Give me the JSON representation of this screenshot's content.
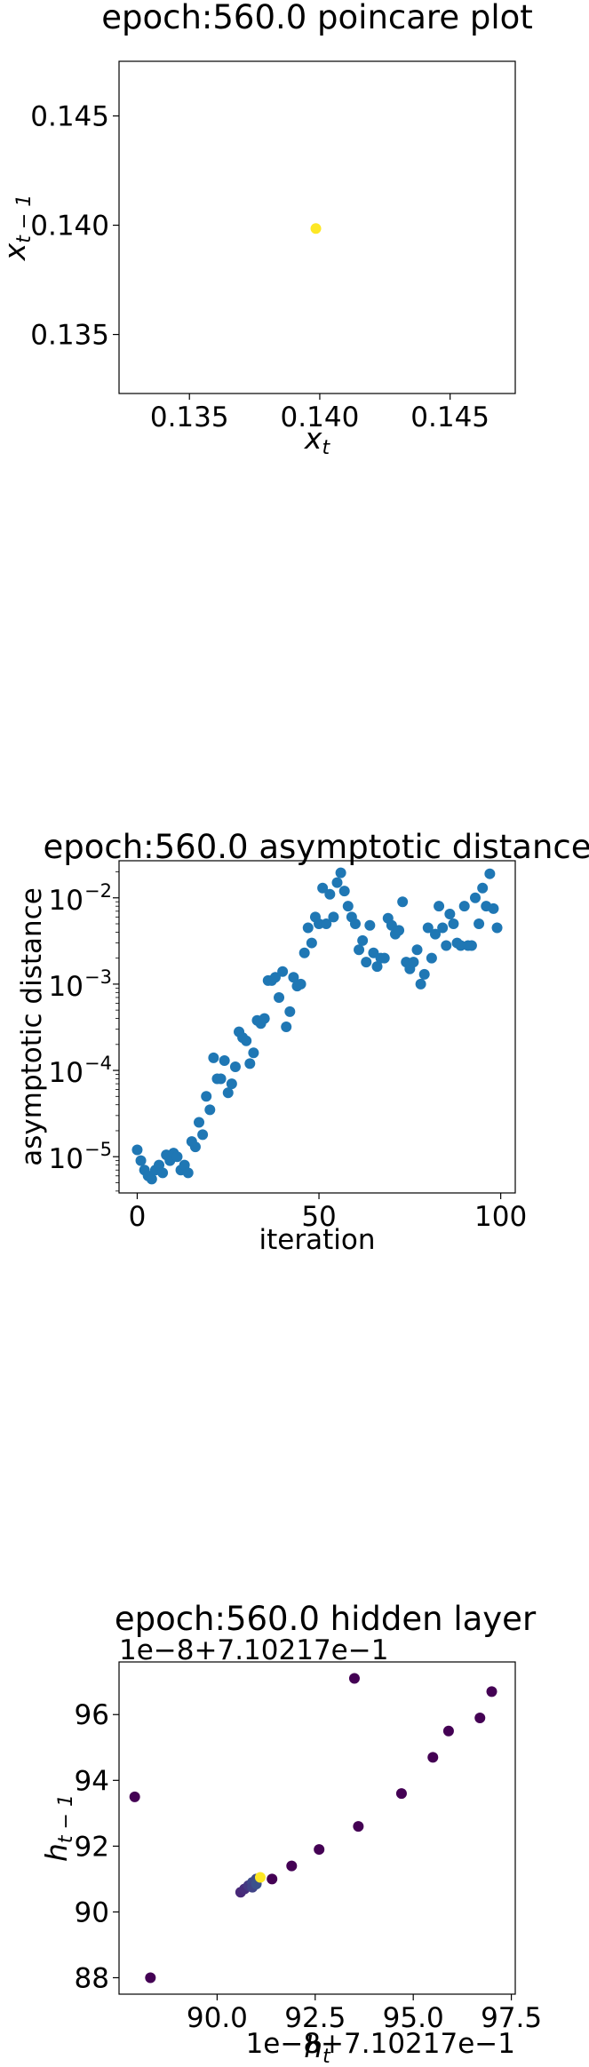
{
  "chart_data": [
    {
      "type": "scatter",
      "title": "epoch:560.0 poincare plot",
      "xlabel": "x_t",
      "ylabel": "x_{t-1}",
      "xlim": [
        0.1323,
        0.1475
      ],
      "ylim": [
        0.1323,
        0.1475
      ],
      "xticks": [
        "0.135",
        "0.140",
        "0.145"
      ],
      "yticks": [
        "0.135",
        "0.140",
        "0.145"
      ],
      "grid": false,
      "points": [
        {
          "x": 0.13985,
          "y": 0.13985,
          "color": "#fde725"
        }
      ]
    },
    {
      "type": "scatter",
      "title": "epoch:560.0 asymptotic distance",
      "xlabel": "iteration",
      "ylabel": "asymptotic distance",
      "xlim": [
        -5,
        104
      ],
      "ylim_log10": [
        -5.42,
        -1.57
      ],
      "yscale": "log",
      "xticks": [
        "0",
        "50",
        "100"
      ],
      "yticks": [
        "10",
        "10",
        "10",
        "10"
      ],
      "ytick_exponents": [
        "−5",
        "−4",
        "−3",
        "−2"
      ],
      "grid": false,
      "color": "#1f77b4",
      "x": [
        0,
        1,
        2,
        3,
        4,
        5,
        6,
        7,
        8,
        9,
        10,
        11,
        12,
        13,
        14,
        15,
        16,
        17,
        18,
        19,
        20,
        21,
        22,
        23,
        24,
        25,
        26,
        27,
        28,
        29,
        30,
        31,
        32,
        33,
        34,
        35,
        36,
        37,
        38,
        39,
        40,
        41,
        42,
        43,
        44,
        45,
        46,
        47,
        48,
        49,
        50,
        51,
        52,
        53,
        54,
        55,
        56,
        57,
        58,
        59,
        60,
        61,
        62,
        63,
        64,
        65,
        66,
        67,
        68,
        69,
        70,
        71,
        72,
        73,
        74,
        75,
        76,
        77,
        78,
        79,
        80,
        81,
        82,
        83,
        84,
        85,
        86,
        87,
        88,
        89,
        90,
        91,
        92,
        93,
        94,
        95,
        96,
        97,
        98,
        99
      ],
      "y": [
        1.2e-05,
        9e-06,
        7e-06,
        6e-06,
        5.5e-06,
        7e-06,
        8e-06,
        6.5e-06,
        1.05e-05,
        9e-06,
        1.1e-05,
        1e-05,
        7e-06,
        8e-06,
        6.5e-06,
        1.5e-05,
        1.3e-05,
        2.5e-05,
        1.8e-05,
        5e-05,
        3.5e-05,
        0.00014,
        8e-05,
        8e-05,
        0.00013,
        5.5e-05,
        7e-05,
        0.00011,
        0.00028,
        0.00024,
        0.00022,
        0.00012,
        0.00016,
        0.00038,
        0.00035,
        0.0004,
        0.0011,
        0.0011,
        0.0012,
        0.0007,
        0.0014,
        0.00032,
        0.00048,
        0.0012,
        0.00095,
        0.001,
        0.0023,
        0.0045,
        0.003,
        0.006,
        0.005,
        0.013,
        0.005,
        0.011,
        0.006,
        0.015,
        0.0195,
        0.012,
        0.008,
        0.006,
        0.005,
        0.0025,
        0.0032,
        0.0018,
        0.0048,
        0.0023,
        0.0016,
        0.002,
        0.002,
        0.0058,
        0.0048,
        0.0038,
        0.0042,
        0.009,
        0.0018,
        0.0015,
        0.0018,
        0.0025,
        0.001,
        0.0013,
        0.0045,
        0.002,
        0.0038,
        0.008,
        0.0045,
        0.0028,
        0.0065,
        0.005,
        0.003,
        0.0028,
        0.008,
        0.0028,
        0.0028,
        0.01,
        0.005,
        0.013,
        0.008,
        0.019,
        0.0075,
        0.0045
      ]
    },
    {
      "type": "scatter",
      "title": "epoch:560.0 hidden layer",
      "xlabel": "h_t",
      "ylabel": "h_{t-1}",
      "offset_x": "1e−8+7.10217e−1",
      "offset_y": "1e−8+7.10217e−1",
      "xlim": [
        87.5,
        97.6
      ],
      "ylim": [
        87.5,
        97.6
      ],
      "xticks": [
        "90.0",
        "92.5",
        "95.0",
        "97.5"
      ],
      "yticks": [
        "88",
        "90",
        "92",
        "94",
        "96"
      ],
      "grid": false,
      "colormap": "viridis",
      "points": [
        {
          "x": 87.9,
          "y": 93.5,
          "c": "#440154"
        },
        {
          "x": 88.3,
          "y": 88.0,
          "c": "#440154"
        },
        {
          "x": 93.5,
          "y": 97.1,
          "c": "#440154"
        },
        {
          "x": 97.0,
          "y": 96.7,
          "c": "#440154"
        },
        {
          "x": 96.7,
          "y": 95.9,
          "c": "#440154"
        },
        {
          "x": 95.9,
          "y": 95.5,
          "c": "#440154"
        },
        {
          "x": 95.5,
          "y": 94.7,
          "c": "#440154"
        },
        {
          "x": 94.7,
          "y": 93.6,
          "c": "#440154"
        },
        {
          "x": 93.6,
          "y": 92.6,
          "c": "#440154"
        },
        {
          "x": 92.6,
          "y": 91.9,
          "c": "#440154"
        },
        {
          "x": 91.9,
          "y": 91.4,
          "c": "#440154"
        },
        {
          "x": 91.4,
          "y": 91.0,
          "c": "#440154"
        },
        {
          "x": 90.6,
          "y": 90.6,
          "c": "#482878"
        },
        {
          "x": 90.7,
          "y": 90.7,
          "c": "#472d7b"
        },
        {
          "x": 90.8,
          "y": 90.8,
          "c": "#443983"
        },
        {
          "x": 90.9,
          "y": 90.9,
          "c": "#3e4a89"
        },
        {
          "x": 91.0,
          "y": 91.0,
          "c": "#3e4a89"
        },
        {
          "x": 90.9,
          "y": 90.75,
          "c": "#414487"
        },
        {
          "x": 91.0,
          "y": 90.85,
          "c": "#3b528b"
        },
        {
          "x": 91.1,
          "y": 91.05,
          "c": "#fde725"
        }
      ]
    }
  ]
}
